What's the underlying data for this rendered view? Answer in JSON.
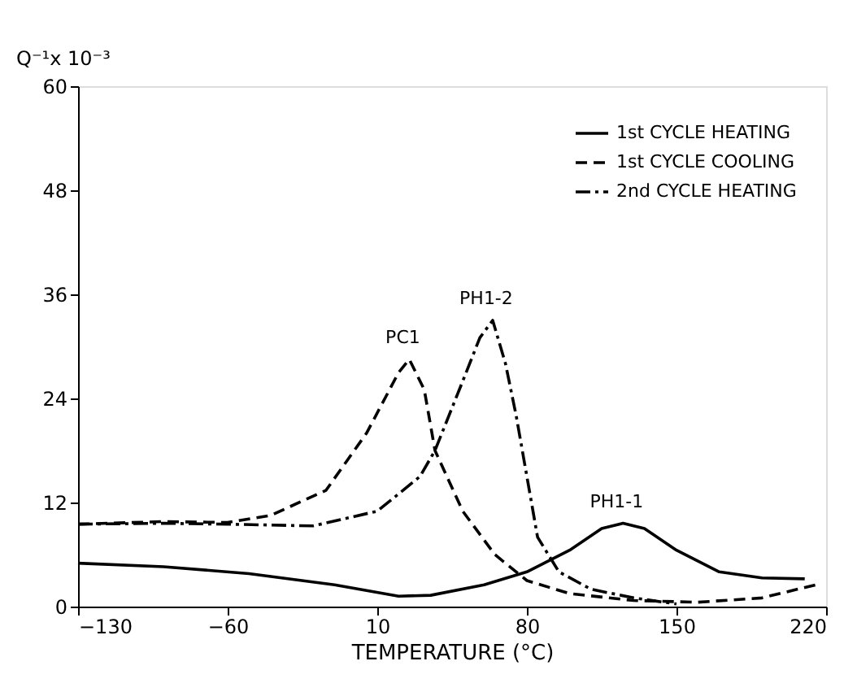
{
  "chart_data": {
    "type": "line",
    "xlabel": "TEMPERATURE (°C)",
    "ylabel": "Q⁻¹x 10⁻³",
    "xlim": [
      -130,
      220
    ],
    "xticks": [
      -130,
      -60,
      10,
      80,
      150,
      220
    ],
    "ylim": [
      0,
      60
    ],
    "yticks": [
      0,
      12,
      24,
      36,
      48,
      60
    ],
    "grid": false,
    "legend": "top right",
    "marker": "none",
    "series": [
      {
        "name": "1st CYCLE HEATING",
        "color": "#000000",
        "line_style": "solid",
        "x": [
          -130,
          -90,
          -50,
          -10,
          20,
          35,
          60,
          80,
          100,
          115,
          125,
          135,
          150,
          170,
          190,
          210
        ],
        "values": [
          5,
          4.6,
          3.8,
          2.5,
          1.2,
          1.3,
          2.5,
          4,
          6.5,
          9,
          9.6,
          9,
          6.5,
          4,
          3.3,
          3.2
        ]
      },
      {
        "name": "1st CYCLE COOLING",
        "color": "#000000",
        "line_style": "dashed",
        "x": [
          -130,
          -90,
          -60,
          -40,
          -14,
          5,
          20,
          25,
          32,
          37,
          50,
          65,
          80,
          100,
          130,
          160,
          190,
          215
        ],
        "values": [
          9.5,
          9.8,
          9.7,
          10.5,
          13.4,
          20,
          27,
          28.5,
          25,
          18,
          11,
          6,
          3,
          1.5,
          0.7,
          0.5,
          1,
          2.5
        ]
      },
      {
        "name": "2nd CYCLE HEATING",
        "color": "#000000",
        "line_style": "dashdot",
        "x": [
          -130,
          -90,
          -60,
          -20,
          10,
          30,
          37,
          50,
          58,
          64,
          70,
          75,
          85,
          95,
          110,
          130,
          150
        ],
        "values": [
          9.5,
          9.6,
          9.5,
          9.3,
          11,
          15,
          18,
          26,
          31,
          33,
          28,
          22,
          8,
          4,
          2,
          1,
          0.3
        ]
      }
    ],
    "annotations": [
      {
        "text": "PC1",
        "x": 25,
        "y": 28.5
      },
      {
        "text": "PH1-2",
        "x": 64,
        "y": 33
      },
      {
        "text": "PH1-1",
        "x": 125,
        "y": 9.6
      }
    ]
  }
}
